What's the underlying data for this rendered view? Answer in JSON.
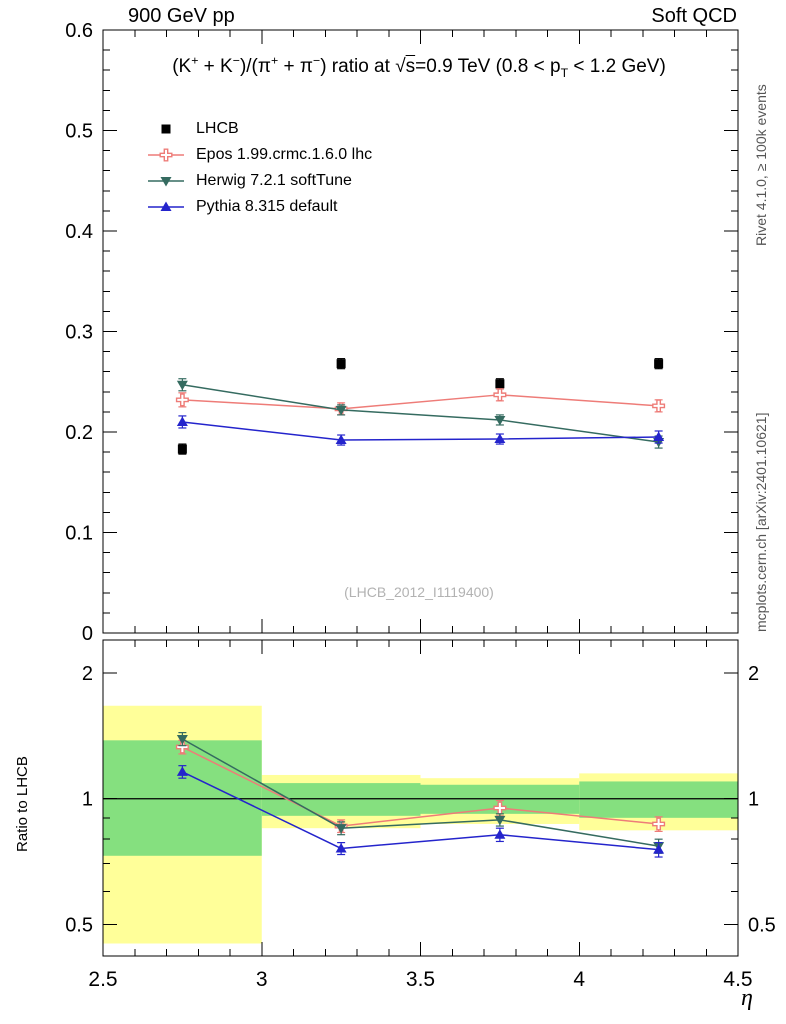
{
  "header": {
    "left": "900 GeV pp",
    "right": "Soft QCD"
  },
  "side_labels": {
    "rivet": "Rivet 4.1.0, ≥ 100k events",
    "mcplots": "mcplots.cern.ch [arXiv:2401.10621]"
  },
  "watermark": "(LHCB_2012_I1119400)",
  "chart_data": {
    "type": "line",
    "title_segments": [
      {
        "text": "(K"
      },
      {
        "text": "+",
        "style": "sup"
      },
      {
        "text": " + K"
      },
      {
        "text": "−",
        "style": "sup"
      },
      {
        "text": ")/(π"
      },
      {
        "text": "+",
        "style": "sup"
      },
      {
        "text": " + π"
      },
      {
        "text": "−",
        "style": "sup"
      },
      {
        "text": ") ratio at "
      },
      {
        "text": "√"
      },
      {
        "text": "s",
        "style": "overline"
      },
      {
        "text": "=0.9 TeV (0.8 < p"
      },
      {
        "text": "T",
        "style": "sub"
      },
      {
        "text": " < 1.2 GeV)"
      }
    ],
    "xlabel": "η",
    "ratio_ylabel": "Ratio to LHCB",
    "x": [
      2.75,
      3.25,
      3.75,
      4.25
    ],
    "xlim": [
      2.5,
      4.5
    ],
    "x_major_ticks": [
      2.5,
      3.0,
      3.5,
      4.0,
      4.5
    ],
    "x_tick_labels": [
      "2.5",
      "3",
      "3.5",
      "4",
      "4.5"
    ],
    "x_minor_step": 0.1,
    "top_panel": {
      "ylim": [
        0,
        0.6
      ],
      "y_major_ticks": [
        0,
        0.1,
        0.2,
        0.3,
        0.4,
        0.5,
        0.6
      ],
      "y_tick_labels": [
        "0",
        "0.1",
        "0.2",
        "0.3",
        "0.4",
        "0.5",
        "0.6"
      ],
      "y_minor_step": 0.02,
      "series": [
        {
          "name": "LHCB",
          "role": "data",
          "color": "#000000",
          "marker": "square",
          "values": [
            0.183,
            0.268,
            0.248,
            0.268
          ],
          "errors": [
            0.005,
            0.005,
            0.005,
            0.005
          ]
        },
        {
          "name": "Epos 1.99.crmc.1.6.0 lhc",
          "role": "mc",
          "color": "#ee7c78",
          "marker": "open-cross",
          "values": [
            0.232,
            0.223,
            0.237,
            0.226
          ],
          "errors": [
            0.007,
            0.006,
            0.006,
            0.006
          ]
        },
        {
          "name": "Herwig 7.2.1 softTune",
          "role": "mc",
          "color": "#356b60",
          "marker": "triangle-down",
          "values": [
            0.247,
            0.222,
            0.212,
            0.19
          ],
          "errors": [
            0.006,
            0.005,
            0.005,
            0.006
          ]
        },
        {
          "name": "Pythia 8.315 default",
          "role": "mc",
          "color": "#2424cc",
          "marker": "triangle-up",
          "values": [
            0.21,
            0.192,
            0.193,
            0.195
          ],
          "errors": [
            0.006,
            0.005,
            0.005,
            0.006
          ]
        }
      ]
    },
    "ratio_panel": {
      "scale": "log",
      "ylim": [
        0.42,
        2.4
      ],
      "y_major_ticks": [
        0.5,
        1,
        2
      ],
      "y_tick_labels": [
        "0.5",
        "1",
        "2"
      ],
      "y_minor_ticks": [
        0.6,
        0.7,
        0.8,
        0.9
      ],
      "reference_line": 1,
      "band_colors": {
        "outer": "#ffff99",
        "inner": "#85e07f"
      },
      "bands": [
        {
          "x0": 2.5,
          "x1": 3.0,
          "outer": [
            0.45,
            1.67
          ],
          "inner": [
            0.73,
            1.38
          ]
        },
        {
          "x0": 3.0,
          "x1": 3.5,
          "outer": [
            0.85,
            1.14
          ],
          "inner": [
            0.91,
            1.09
          ]
        },
        {
          "x0": 3.5,
          "x1": 4.0,
          "outer": [
            0.87,
            1.12
          ],
          "inner": [
            0.92,
            1.08
          ]
        },
        {
          "x0": 4.0,
          "x1": 4.5,
          "outer": [
            0.84,
            1.15
          ],
          "inner": [
            0.9,
            1.1
          ]
        }
      ],
      "series": [
        {
          "name": "Epos 1.99.crmc.1.6.0 lhc",
          "color": "#ee7c78",
          "marker": "open-cross",
          "values": [
            1.33,
            0.86,
            0.95,
            0.87
          ],
          "errors": [
            0.05,
            0.03,
            0.04,
            0.035
          ]
        },
        {
          "name": "Herwig 7.2.1 softTune",
          "color": "#356b60",
          "marker": "triangle-down",
          "values": [
            1.39,
            0.85,
            0.89,
            0.77
          ],
          "errors": [
            0.05,
            0.03,
            0.03,
            0.03
          ]
        },
        {
          "name": "Pythia 8.315 default",
          "color": "#2424cc",
          "marker": "triangle-up",
          "values": [
            1.16,
            0.76,
            0.82,
            0.755
          ],
          "errors": [
            0.04,
            0.025,
            0.03,
            0.03
          ]
        }
      ]
    }
  }
}
